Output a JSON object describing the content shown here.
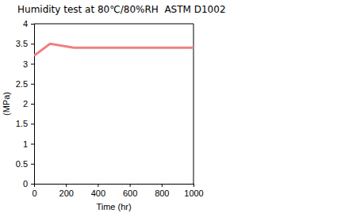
{
  "chart_data": {
    "type": "line",
    "title": "Humidity test at 80℃/80%RH  ASTM D1002",
    "x_label": "Time (hr)",
    "y_label": "(MPa)",
    "x": [
      0,
      100,
      250,
      1000
    ],
    "series": [
      {
        "color": "#f08080",
        "values": [
          3.2,
          3.5,
          3.4,
          3.4
        ]
      }
    ],
    "xlim": [
      0,
      1000
    ],
    "xticks": [
      0,
      200,
      400,
      600,
      800,
      1000
    ],
    "ylim": [
      0,
      4
    ],
    "yticks": [
      0,
      0.5,
      1,
      1.5,
      2,
      2.5,
      3,
      3.5,
      4
    ],
    "grid": false
  }
}
